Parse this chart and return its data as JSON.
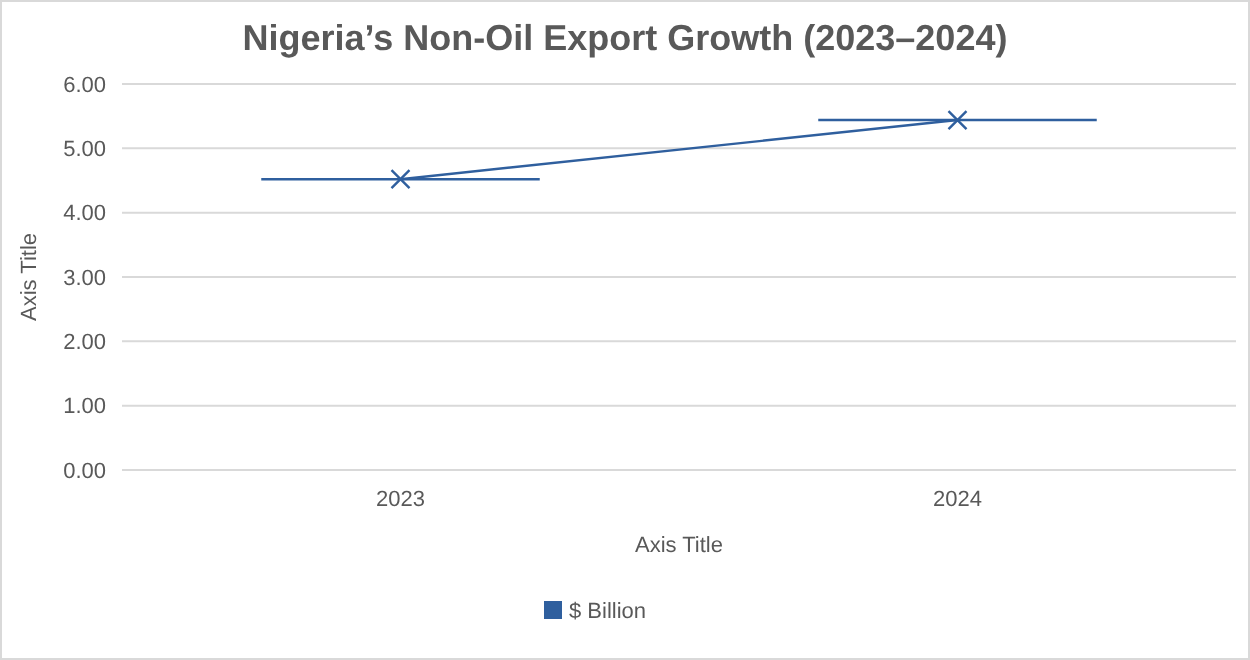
{
  "chart_data": {
    "type": "line",
    "title": "Nigeria’s Non-Oil Export Growth (2023–2024)",
    "xlabel": "Axis Title",
    "ylabel": "Axis Title",
    "x": [
      2023,
      2024
    ],
    "xlim": [
      2022.5,
      2024.5
    ],
    "xticks": [
      2023,
      2024
    ],
    "ylim": [
      0,
      6
    ],
    "yticks": [
      {
        "value": 0,
        "label": "0.00"
      },
      {
        "value": 1,
        "label": "1.00"
      },
      {
        "value": 2,
        "label": "2.00"
      },
      {
        "value": 3,
        "label": "3.00"
      },
      {
        "value": 4,
        "label": "4.00"
      },
      {
        "value": 5,
        "label": "5.00"
      },
      {
        "value": 6,
        "label": "6.00"
      }
    ],
    "series": [
      {
        "name": "$ Billion",
        "color": "#2f5f9e",
        "values": [
          4.52,
          5.44
        ],
        "xerrors": [
          0.25,
          0.25
        ]
      }
    ],
    "grid": "y",
    "legend": "bottom",
    "marker": "cross",
    "line_style": "solid"
  }
}
